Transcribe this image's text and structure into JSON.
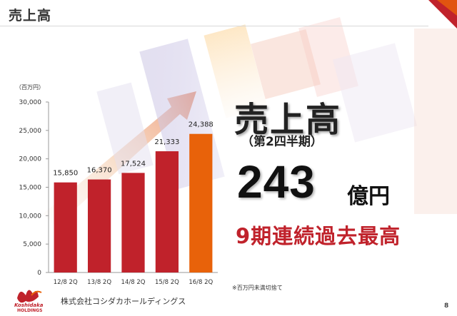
{
  "slide": {
    "title": "売上高",
    "big_title": "売上高",
    "sub_title": "（第2四半期）",
    "big_number": "243",
    "big_unit": "億円",
    "record_text": "9期連続過去最高",
    "footnote": "※百万円未満切捨て",
    "company": "株式会社コシダカホールディングス",
    "logo_line1": "Koshidaka",
    "logo_line2": "HOLDINGS",
    "page_number": "8"
  },
  "colors": {
    "bar": "#c0222b",
    "bar_highlight": "#e8620a",
    "accent_red": "#c0222b"
  },
  "chart_data": {
    "type": "bar",
    "unit_label": "（百万円）",
    "categories": [
      "12/8 2Q",
      "13/8 2Q",
      "14/8 2Q",
      "15/8 2Q",
      "16/8 2Q"
    ],
    "values": [
      15850,
      16370,
      17524,
      21333,
      24388
    ],
    "value_labels": [
      "15,850",
      "16,370",
      "17,524",
      "21,333",
      "24,388"
    ],
    "highlight_index": 4,
    "ylim": [
      0,
      30000
    ],
    "yticks": [
      0,
      5000,
      10000,
      15000,
      20000,
      25000,
      30000
    ],
    "ytick_labels": [
      "0",
      "5,000",
      "10,000",
      "15,000",
      "20,000",
      "25,000",
      "30,000"
    ],
    "grid": false
  }
}
